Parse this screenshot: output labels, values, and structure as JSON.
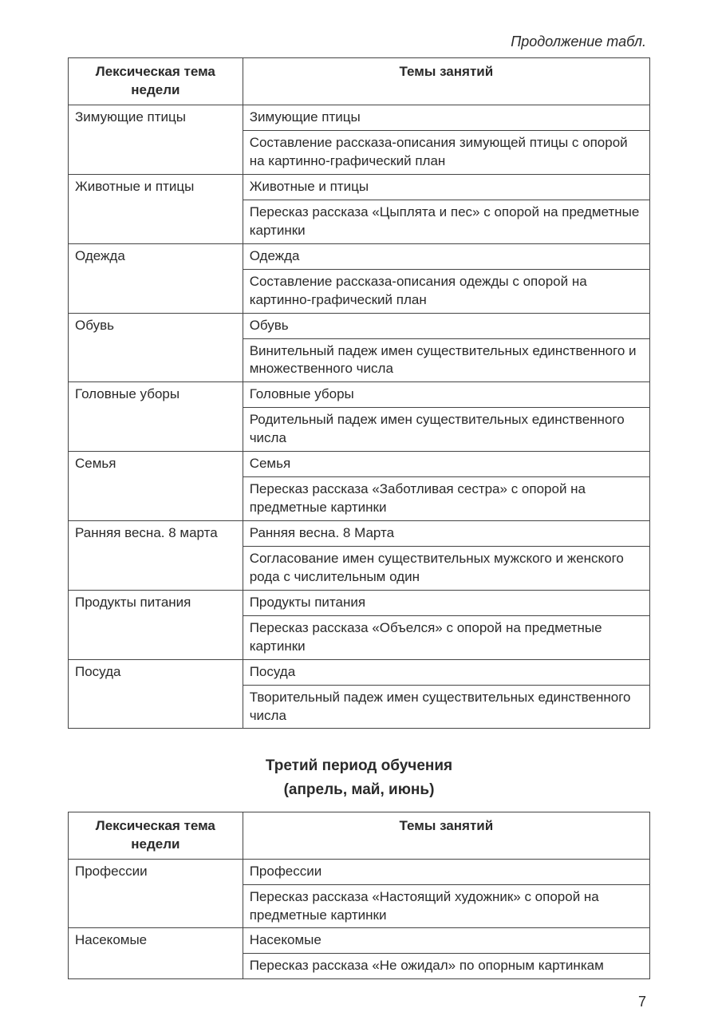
{
  "continuation_label": "Продолжение табл.",
  "col_left_header": "Лексическая тема недели",
  "col_right_header": "Темы занятий",
  "table1": {
    "type": "table",
    "columns": [
      "Лексическая тема недели",
      "Темы занятий"
    ],
    "col_widths_pct": [
      30,
      70
    ],
    "border_color": "#444444",
    "text_color": "#2a2a2a",
    "background_color": "#ffffff",
    "font_size_pt": 13,
    "groups": [
      {
        "theme": "Зимующие птицы",
        "topics": [
          "Зимующие птицы",
          "Составление рассказа-описания зимующей птицы с опорой на картинно-графический план"
        ]
      },
      {
        "theme": "Животные и птицы",
        "topics": [
          "Животные и птицы",
          "Пересказ рассказа «Цыплята и пес» с опорой на предметные картинки"
        ]
      },
      {
        "theme": "Одежда",
        "topics": [
          "Одежда",
          "Составление рассказа-описания одежды с опорой на картинно-графический план"
        ]
      },
      {
        "theme": "Обувь",
        "topics": [
          "Обувь",
          "Винительный падеж имен существительных единственного и множественного числа"
        ]
      },
      {
        "theme": "Головные уборы",
        "topics": [
          "Головные уборы",
          "Родительный падеж имен существительных единственного числа"
        ]
      },
      {
        "theme": "Семья",
        "topics": [
          "Семья",
          "Пересказ рассказа «Заботливая сестра» с опорой на предметные картинки"
        ]
      },
      {
        "theme": "Ранняя весна. 8 марта",
        "topics": [
          "Ранняя весна. 8 Марта",
          "Согласование имен существительных мужского и женского рода с числительным один"
        ]
      },
      {
        "theme": "Продукты питания",
        "topics": [
          "Продукты питания",
          "Пересказ рассказа «Объелся» с опорой на предметные картинки"
        ]
      },
      {
        "theme": "Посуда",
        "topics": [
          "Посуда",
          "Творительный падеж имен существительных единственного числа"
        ]
      }
    ]
  },
  "section": {
    "title": "Третий период обучения",
    "subtitle": "(апрель, май, июнь)",
    "title_fontsize_pt": 14,
    "font_weight": "bold"
  },
  "table2": {
    "type": "table",
    "columns": [
      "Лексическая тема недели",
      "Темы занятий"
    ],
    "col_widths_pct": [
      30,
      70
    ],
    "border_color": "#444444",
    "text_color": "#2a2a2a",
    "background_color": "#ffffff",
    "font_size_pt": 13,
    "groups": [
      {
        "theme": "Профессии",
        "topics": [
          "Профессии",
          "Пересказ рассказа «Настоящий художник» с опорой на предметные картинки"
        ]
      },
      {
        "theme": "Насекомые",
        "topics": [
          "Насекомые",
          "Пересказ рассказа «Не ожидал» по опорным картинкам"
        ]
      }
    ]
  },
  "page_number": "7"
}
